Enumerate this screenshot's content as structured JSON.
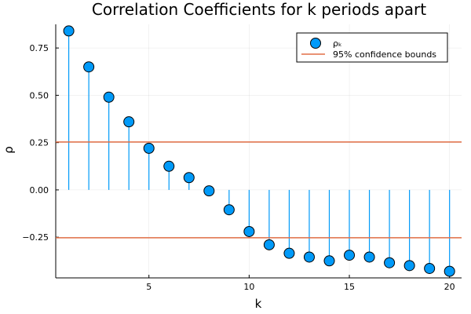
{
  "chart_data": {
    "type": "scatter",
    "title": "Correlation Coefficients for k periods apart",
    "xlabel": "k",
    "ylabel": "ρ",
    "xlim": [
      0.35,
      20.6
    ],
    "ylim": [
      -0.465,
      0.875
    ],
    "xticks": [
      5,
      10,
      15,
      20
    ],
    "xtick_labels": [
      "5",
      "10",
      "15",
      "20"
    ],
    "yticks": [
      -0.25,
      0,
      0.25,
      0.5,
      0.75
    ],
    "ytick_labels": [
      "−0.25",
      "0.00",
      "0.25",
      "0.50",
      "0.75"
    ],
    "grid": true,
    "legend_position": "top-right",
    "series": [
      {
        "name": "ρₖ",
        "style": "stem-markers",
        "color": "#009af9",
        "x": [
          1,
          2,
          3,
          4,
          5,
          6,
          7,
          8,
          9,
          10,
          11,
          12,
          13,
          14,
          15,
          16,
          17,
          18,
          19,
          20
        ],
        "values": [
          0.84,
          0.65,
          0.49,
          0.36,
          0.22,
          0.125,
          0.065,
          -0.005,
          -0.105,
          -0.22,
          -0.29,
          -0.335,
          -0.355,
          -0.375,
          -0.345,
          -0.355,
          -0.385,
          -0.4,
          -0.415,
          -0.43
        ]
      },
      {
        "name": "95% confidence bounds",
        "style": "hlines",
        "color": "#e26f46",
        "values": [
          0.253,
          -0.253
        ]
      }
    ]
  }
}
